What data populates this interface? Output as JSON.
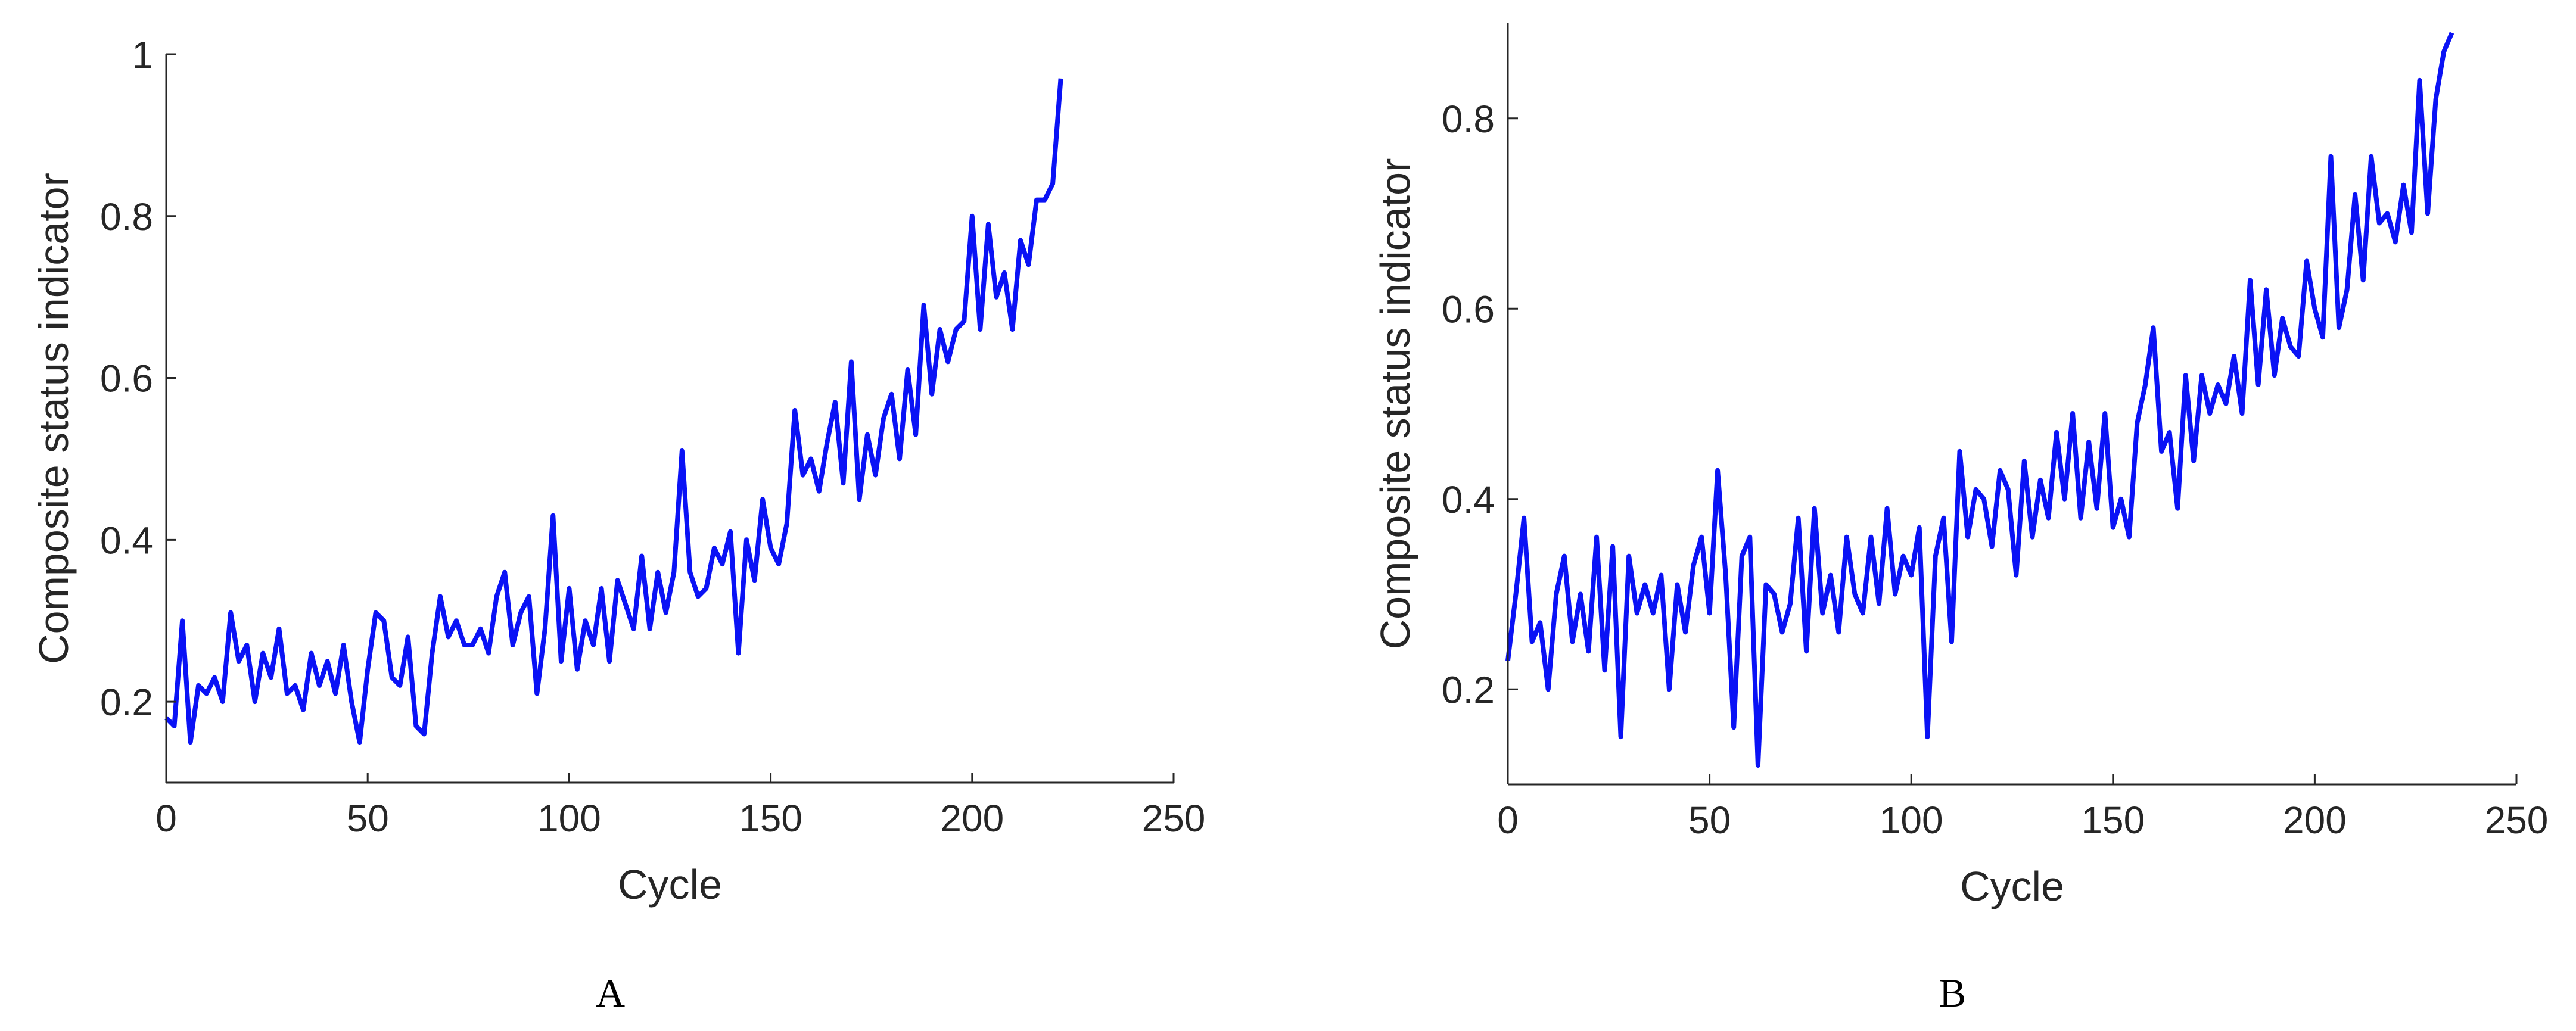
{
  "chart_data": [
    {
      "type": "line",
      "xlabel": "Cycle",
      "ylabel": "Composite status indicator",
      "caption": "A",
      "color": "#0a12f5",
      "xlim": [
        0,
        250
      ],
      "xticks": [
        0,
        50,
        100,
        150,
        200,
        250
      ],
      "ylim": [
        0.1,
        1
      ],
      "yticks": [
        0.2,
        0.4,
        0.6,
        0.8,
        1
      ],
      "x": [
        0,
        2,
        4,
        6,
        8,
        10,
        12,
        14,
        16,
        18,
        20,
        22,
        24,
        26,
        28,
        30,
        32,
        34,
        36,
        38,
        40,
        42,
        44,
        46,
        48,
        50,
        52,
        54,
        56,
        58,
        60,
        62,
        64,
        66,
        68,
        70,
        72,
        74,
        76,
        78,
        80,
        82,
        84,
        86,
        88,
        90,
        92,
        94,
        96,
        98,
        100,
        102,
        104,
        106,
        108,
        110,
        112,
        114,
        116,
        118,
        120,
        122,
        124,
        126,
        128,
        130,
        132,
        134,
        136,
        138,
        140,
        142,
        144,
        146,
        148,
        150,
        152,
        154,
        156,
        158,
        160,
        162,
        164,
        166,
        168,
        170,
        172,
        174,
        176,
        178,
        180,
        182,
        184,
        186,
        188,
        190,
        192,
        194,
        196,
        198,
        200,
        202,
        204,
        206,
        208,
        210,
        212,
        214,
        216,
        218,
        220,
        222
      ],
      "values": [
        0.18,
        0.17,
        0.3,
        0.15,
        0.22,
        0.21,
        0.23,
        0.2,
        0.31,
        0.25,
        0.27,
        0.2,
        0.26,
        0.23,
        0.29,
        0.21,
        0.22,
        0.19,
        0.26,
        0.22,
        0.25,
        0.21,
        0.27,
        0.2,
        0.15,
        0.24,
        0.31,
        0.3,
        0.23,
        0.22,
        0.28,
        0.17,
        0.16,
        0.26,
        0.33,
        0.28,
        0.3,
        0.27,
        0.27,
        0.29,
        0.26,
        0.33,
        0.36,
        0.27,
        0.31,
        0.33,
        0.21,
        0.29,
        0.43,
        0.25,
        0.34,
        0.24,
        0.3,
        0.27,
        0.34,
        0.25,
        0.35,
        0.32,
        0.29,
        0.38,
        0.29,
        0.36,
        0.31,
        0.36,
        0.51,
        0.36,
        0.33,
        0.34,
        0.39,
        0.37,
        0.41,
        0.26,
        0.4,
        0.35,
        0.45,
        0.39,
        0.37,
        0.42,
        0.56,
        0.48,
        0.5,
        0.46,
        0.52,
        0.57,
        0.47,
        0.62,
        0.45,
        0.53,
        0.48,
        0.55,
        0.58,
        0.5,
        0.61,
        0.53,
        0.69,
        0.58,
        0.66,
        0.62,
        0.66,
        0.67,
        0.8,
        0.66,
        0.79,
        0.7,
        0.73,
        0.66,
        0.77,
        0.74,
        0.82,
        0.82,
        0.84,
        0.97
      ]
    },
    {
      "type": "line",
      "xlabel": "Cycle",
      "ylabel": "Composite status indicator",
      "caption": "B",
      "color": "#0a12f5",
      "xlim": [
        0,
        250
      ],
      "xticks": [
        0,
        50,
        100,
        150,
        200,
        250
      ],
      "ylim": [
        0.1,
        0.9
      ],
      "yticks": [
        0.2,
        0.4,
        0.6,
        0.8
      ],
      "x": [
        0,
        2,
        4,
        6,
        8,
        10,
        12,
        14,
        16,
        18,
        20,
        22,
        24,
        26,
        28,
        30,
        32,
        34,
        36,
        38,
        40,
        42,
        44,
        46,
        48,
        50,
        52,
        54,
        56,
        58,
        60,
        62,
        64,
        66,
        68,
        70,
        72,
        74,
        76,
        78,
        80,
        82,
        84,
        86,
        88,
        90,
        92,
        94,
        96,
        98,
        100,
        102,
        104,
        106,
        108,
        110,
        112,
        114,
        116,
        118,
        120,
        122,
        124,
        126,
        128,
        130,
        132,
        134,
        136,
        138,
        140,
        142,
        144,
        146,
        148,
        150,
        152,
        154,
        156,
        158,
        160,
        162,
        164,
        166,
        168,
        170,
        172,
        174,
        176,
        178,
        180,
        182,
        184,
        186,
        188,
        190,
        192,
        194,
        196,
        198,
        200,
        202,
        204,
        206,
        208,
        210,
        212,
        214,
        216,
        218,
        220,
        222,
        224,
        226,
        228,
        230,
        232,
        234
      ],
      "values": [
        0.23,
        0.3,
        0.38,
        0.25,
        0.27,
        0.2,
        0.3,
        0.34,
        0.25,
        0.3,
        0.24,
        0.36,
        0.22,
        0.35,
        0.15,
        0.34,
        0.28,
        0.31,
        0.28,
        0.32,
        0.2,
        0.31,
        0.26,
        0.33,
        0.36,
        0.28,
        0.43,
        0.32,
        0.16,
        0.34,
        0.36,
        0.12,
        0.31,
        0.3,
        0.26,
        0.29,
        0.38,
        0.24,
        0.39,
        0.28,
        0.32,
        0.26,
        0.36,
        0.3,
        0.28,
        0.36,
        0.29,
        0.39,
        0.3,
        0.34,
        0.32,
        0.37,
        0.15,
        0.34,
        0.38,
        0.25,
        0.45,
        0.36,
        0.41,
        0.4,
        0.35,
        0.43,
        0.41,
        0.32,
        0.44,
        0.36,
        0.42,
        0.38,
        0.47,
        0.4,
        0.49,
        0.38,
        0.46,
        0.39,
        0.49,
        0.37,
        0.4,
        0.36,
        0.48,
        0.52,
        0.58,
        0.45,
        0.47,
        0.39,
        0.53,
        0.44,
        0.53,
        0.49,
        0.52,
        0.5,
        0.55,
        0.49,
        0.63,
        0.52,
        0.62,
        0.53,
        0.59,
        0.56,
        0.55,
        0.65,
        0.6,
        0.57,
        0.76,
        0.58,
        0.62,
        0.72,
        0.63,
        0.76,
        0.69,
        0.7,
        0.67,
        0.73,
        0.68,
        0.84,
        0.7,
        0.82,
        0.87,
        0.89
      ]
    }
  ]
}
